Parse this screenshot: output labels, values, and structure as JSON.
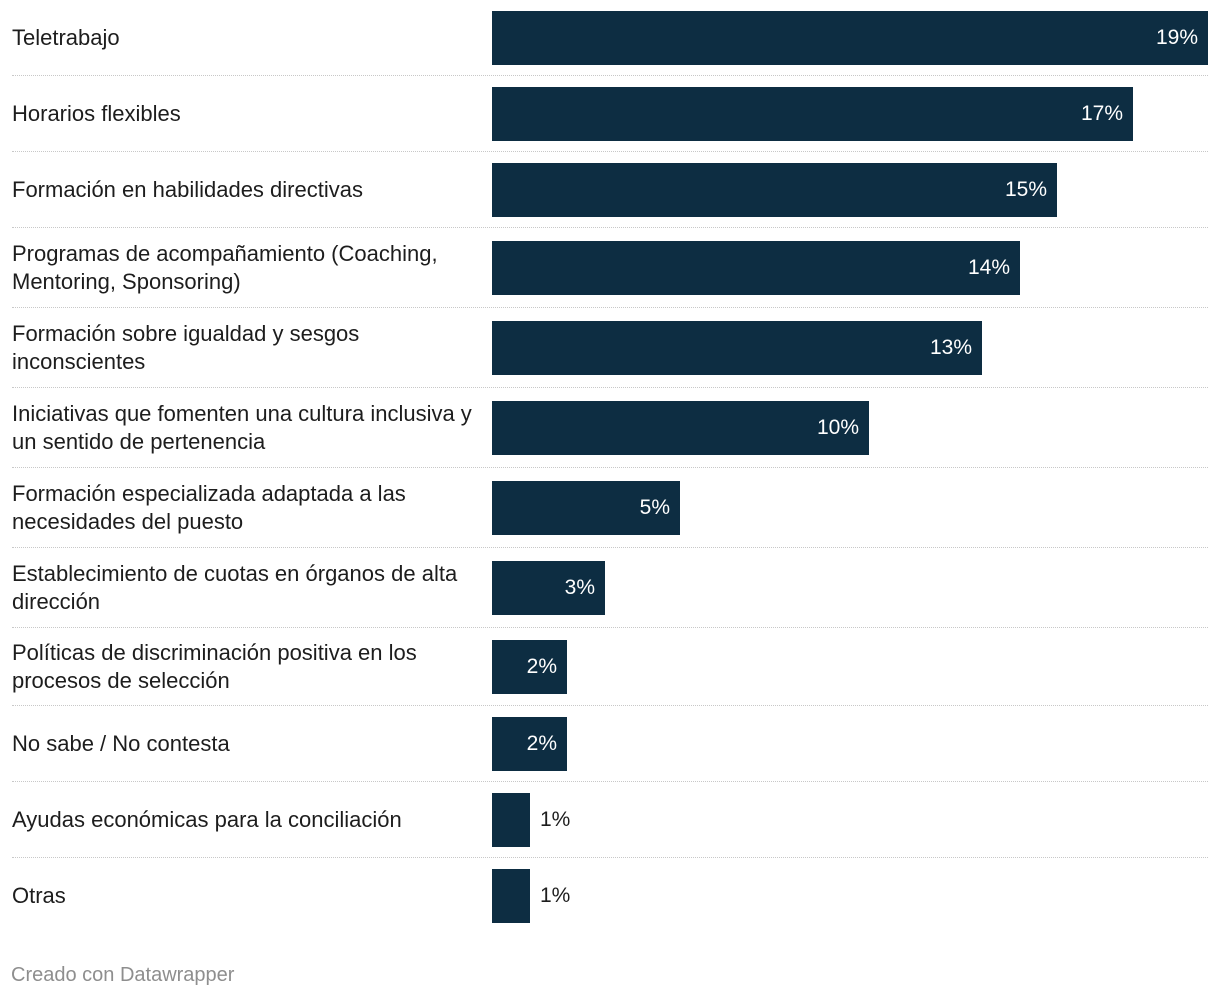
{
  "chart_data": {
    "type": "bar",
    "orientation": "horizontal",
    "categories": [
      "Teletrabajo",
      "Horarios flexibles",
      "Formación en habilidades directivas",
      "Programas de acompañamiento (Coaching, Mentoring, Sponsoring)",
      "Formación sobre igualdad y sesgos inconscientes",
      "Iniciativas que fomenten una cultura inclusiva y un sentido de pertenencia",
      "Formación especializada adaptada a las necesidades del puesto",
      "Establecimiento de cuotas en órganos de alta dirección",
      "Políticas de discriminación positiva en los procesos de selección",
      "No sabe / No contesta",
      "Ayudas económicas para la conciliación",
      "Otras"
    ],
    "values": [
      19,
      17,
      15,
      14,
      13,
      10,
      5,
      3,
      2,
      2,
      1,
      1
    ],
    "value_labels": [
      "19%",
      "17%",
      "15%",
      "14%",
      "13%",
      "10%",
      "5%",
      "3%",
      "2%",
      "2%",
      "1%",
      "1%"
    ],
    "unit": "%",
    "xlim": [
      0,
      19
    ],
    "grid": false,
    "bar_color": "#0d2d42",
    "title": "",
    "xlabel": "",
    "ylabel": ""
  },
  "footer": {
    "credit": "Creado con Datawrapper"
  },
  "colors": {
    "bar": "#0d2d42",
    "label_inside": "#ffffff",
    "label_outside": "#1d1d1d",
    "footer_text": "#8e8e8e"
  }
}
